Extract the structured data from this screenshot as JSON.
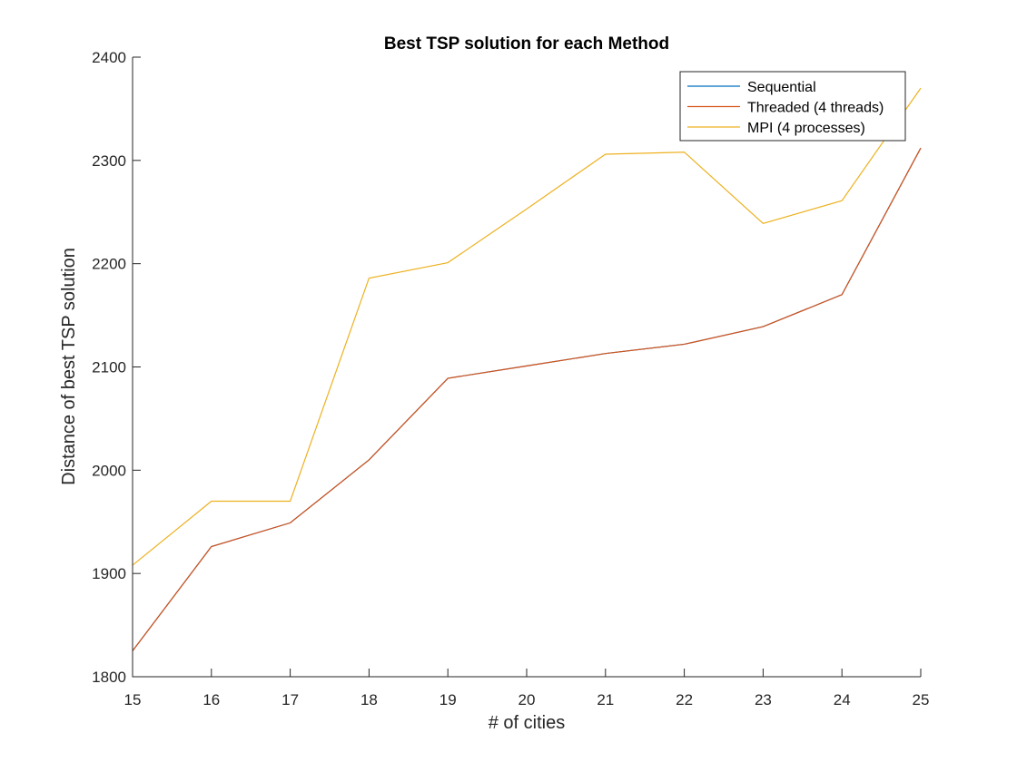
{
  "chart_data": {
    "type": "line",
    "title": "Best TSP solution for each Method",
    "xlabel": "# of cities",
    "ylabel": "Distance of best TSP solution",
    "xlim": [
      15,
      25
    ],
    "ylim": [
      1800,
      2400
    ],
    "xticks": [
      15,
      16,
      17,
      18,
      19,
      20,
      21,
      22,
      23,
      24,
      25
    ],
    "yticks": [
      1800,
      1900,
      2000,
      2100,
      2200,
      2300,
      2400
    ],
    "grid": false,
    "legend_position": "top-right",
    "x": [
      15,
      16,
      17,
      18,
      19,
      20,
      21,
      22,
      23,
      24,
      25
    ],
    "series": [
      {
        "name": "Sequential",
        "color": "#0072BD",
        "values": [
          1825,
          1926,
          1949,
          2010,
          2089,
          2101,
          2113,
          2122,
          2139,
          2170,
          2312
        ]
      },
      {
        "name": "Threaded (4 threads)",
        "color": "#D95319",
        "values": [
          1825,
          1926,
          1949,
          2010,
          2089,
          2101,
          2113,
          2122,
          2139,
          2170,
          2312
        ]
      },
      {
        "name": "MPI (4 processes)",
        "color": "#EDB120",
        "values": [
          1908,
          1970,
          1970,
          2186,
          2201,
          2253,
          2306,
          2308,
          2239,
          2261,
          2370
        ]
      }
    ]
  }
}
